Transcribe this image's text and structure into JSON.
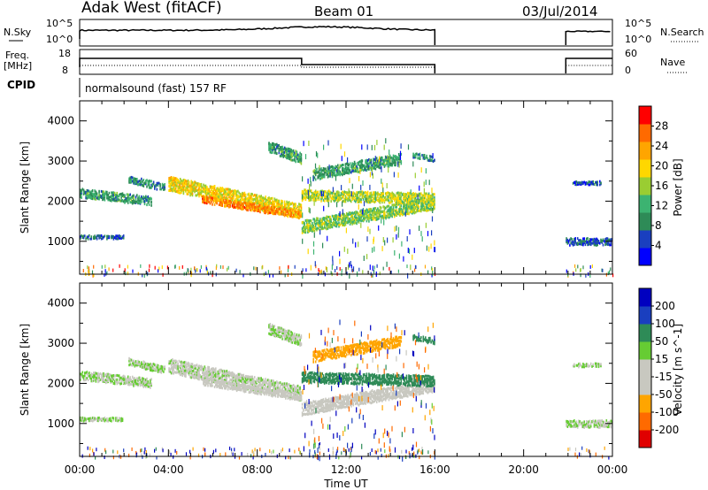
{
  "header": {
    "station": "Adak West (fitACF)",
    "beam": "Beam 01",
    "date": "03/Jul/2014"
  },
  "panels": {
    "nsky": {
      "label": "N.Sky",
      "left_ticks": [
        "10^5",
        "10^0"
      ],
      "right_ticks": [
        "10^5",
        "10^0"
      ],
      "right_label": "N.Search"
    },
    "freq": {
      "label_1": "Freq.",
      "label_2": "[MHz]",
      "left_ticks": [
        "18",
        "8"
      ],
      "right_ticks": [
        "60",
        "0"
      ],
      "right_label": "Nave"
    },
    "cpid": {
      "label": "CPID",
      "text": "normalsound (fast) 157 RF"
    }
  },
  "colors": {
    "power_scale": [
      "#0000ff",
      "#1a3fbf",
      "#2e8b57",
      "#3cb371",
      "#9acd32",
      "#ffd700",
      "#ffa500",
      "#ff6a00",
      "#ff0000"
    ],
    "velocity_scale": [
      "#e00000",
      "#ff6a00",
      "#ffa500",
      "#c8c8c0",
      "#c8c8c0",
      "#66cc33",
      "#2e8b57",
      "#1a3fbf",
      "#0000c0"
    ]
  },
  "chart_data": [
    {
      "type": "heatmap",
      "title": "",
      "ylabel": "Slant Range [km]",
      "xlabel": "",
      "ylim": [
        180,
        4500
      ],
      "xlim": [
        0,
        24
      ],
      "y_ticks": [
        "1000",
        "2000",
        "3000",
        "4000"
      ],
      "x_ticks": [
        "00:00",
        "04:00",
        "08:00",
        "12:00",
        "16:00",
        "20:00",
        "00:00"
      ],
      "colorbar": {
        "label": "Power [dB]",
        "ticks": [
          "28",
          "24",
          "20",
          "16",
          "12",
          "8",
          "4"
        ],
        "range": [
          0,
          30
        ]
      },
      "data_gaps_hours": [
        [
          16.0,
          21.9
        ]
      ],
      "echo_bands": [
        {
          "t_start": 0.0,
          "t_end": 3.2,
          "range_from_km": 2250,
          "range_to_km": 2050,
          "width_km": 220,
          "value": 10
        },
        {
          "t_start": 0.0,
          "t_end": 2.0,
          "range_from_km": 1150,
          "range_to_km": 1150,
          "width_km": 80,
          "value": 6
        },
        {
          "t_start": 2.2,
          "t_end": 3.8,
          "range_from_km": 2600,
          "range_to_km": 2400,
          "width_km": 200,
          "value": 9
        },
        {
          "t_start": 4.0,
          "t_end": 10.0,
          "range_from_km": 2500,
          "range_to_km": 1800,
          "width_km": 380,
          "value": 18
        },
        {
          "t_start": 5.5,
          "t_end": 10.0,
          "range_from_km": 2100,
          "range_to_km": 1700,
          "width_km": 180,
          "value": 23
        },
        {
          "t_start": 8.5,
          "t_end": 10.0,
          "range_from_km": 3400,
          "range_to_km": 3100,
          "width_km": 250,
          "value": 10
        },
        {
          "t_start": 10.0,
          "t_end": 16.0,
          "range_from_km": 1400,
          "range_to_km": 2000,
          "width_km": 300,
          "value": 14
        },
        {
          "t_start": 10.0,
          "t_end": 16.0,
          "range_from_km": 2200,
          "range_to_km": 2100,
          "width_km": 260,
          "value": 16
        },
        {
          "t_start": 10.5,
          "t_end": 14.5,
          "range_from_km": 2700,
          "range_to_km": 3100,
          "width_km": 250,
          "value": 10
        },
        {
          "t_start": 15.0,
          "t_end": 16.0,
          "range_from_km": 3200,
          "range_to_km": 3100,
          "width_km": 150,
          "value": 8
        },
        {
          "t_start": 21.9,
          "t_end": 24.0,
          "range_from_km": 1050,
          "range_to_km": 1050,
          "width_km": 200,
          "value": 6
        },
        {
          "t_start": 22.2,
          "t_end": 23.5,
          "range_from_km": 2500,
          "range_to_km": 2500,
          "width_km": 80,
          "value": 5
        }
      ]
    },
    {
      "type": "heatmap",
      "title": "",
      "ylabel": "Slant Range [km]",
      "xlabel": "Time UT",
      "ylim": [
        180,
        4500
      ],
      "xlim": [
        0,
        24
      ],
      "y_ticks": [
        "1000",
        "2000",
        "3000",
        "4000"
      ],
      "x_ticks": [
        "00:00",
        "04:00",
        "08:00",
        "12:00",
        "16:00",
        "20:00",
        "00:00"
      ],
      "colorbar": {
        "label": "Velocity [m s^-1]",
        "ticks": [
          "200",
          "100",
          "50",
          "15",
          "-15",
          "-50",
          "-100",
          "-200"
        ],
        "range": [
          -250,
          250
        ]
      },
      "data_gaps_hours": [
        [
          16.0,
          21.9
        ]
      ],
      "echo_bands": [
        {
          "t_start": 0.0,
          "t_end": 3.2,
          "range_from_km": 2250,
          "range_to_km": 2050,
          "width_km": 220,
          "value": 0
        },
        {
          "t_start": 0.0,
          "t_end": 2.0,
          "range_from_km": 1150,
          "range_to_km": 1150,
          "width_km": 80,
          "value": 0
        },
        {
          "t_start": 2.2,
          "t_end": 3.8,
          "range_from_km": 2600,
          "range_to_km": 2400,
          "width_km": 200,
          "value": 0
        },
        {
          "t_start": 4.0,
          "t_end": 10.0,
          "range_from_km": 2500,
          "range_to_km": 1800,
          "width_km": 380,
          "value": -5
        },
        {
          "t_start": 5.5,
          "t_end": 10.0,
          "range_from_km": 2100,
          "range_to_km": 1700,
          "width_km": 180,
          "value": -30
        },
        {
          "t_start": 8.5,
          "t_end": 10.0,
          "range_from_km": 3400,
          "range_to_km": 3100,
          "width_km": 250,
          "value": 0
        },
        {
          "t_start": 10.0,
          "t_end": 16.0,
          "range_from_km": 1400,
          "range_to_km": 2000,
          "width_km": 300,
          "value": -30
        },
        {
          "t_start": 10.0,
          "t_end": 16.0,
          "range_from_km": 2200,
          "range_to_km": 2100,
          "width_km": 260,
          "value": 40
        },
        {
          "t_start": 10.5,
          "t_end": 14.5,
          "range_from_km": 2700,
          "range_to_km": 3100,
          "width_km": 250,
          "value": -60
        },
        {
          "t_start": 15.0,
          "t_end": 16.0,
          "range_from_km": 3200,
          "range_to_km": 3100,
          "width_km": 150,
          "value": 30
        },
        {
          "t_start": 21.9,
          "t_end": 24.0,
          "range_from_km": 1050,
          "range_to_km": 1050,
          "width_km": 200,
          "value": 0
        },
        {
          "t_start": 22.2,
          "t_end": 23.5,
          "range_from_km": 2500,
          "range_to_km": 2500,
          "width_km": 80,
          "value": 0
        }
      ]
    }
  ]
}
